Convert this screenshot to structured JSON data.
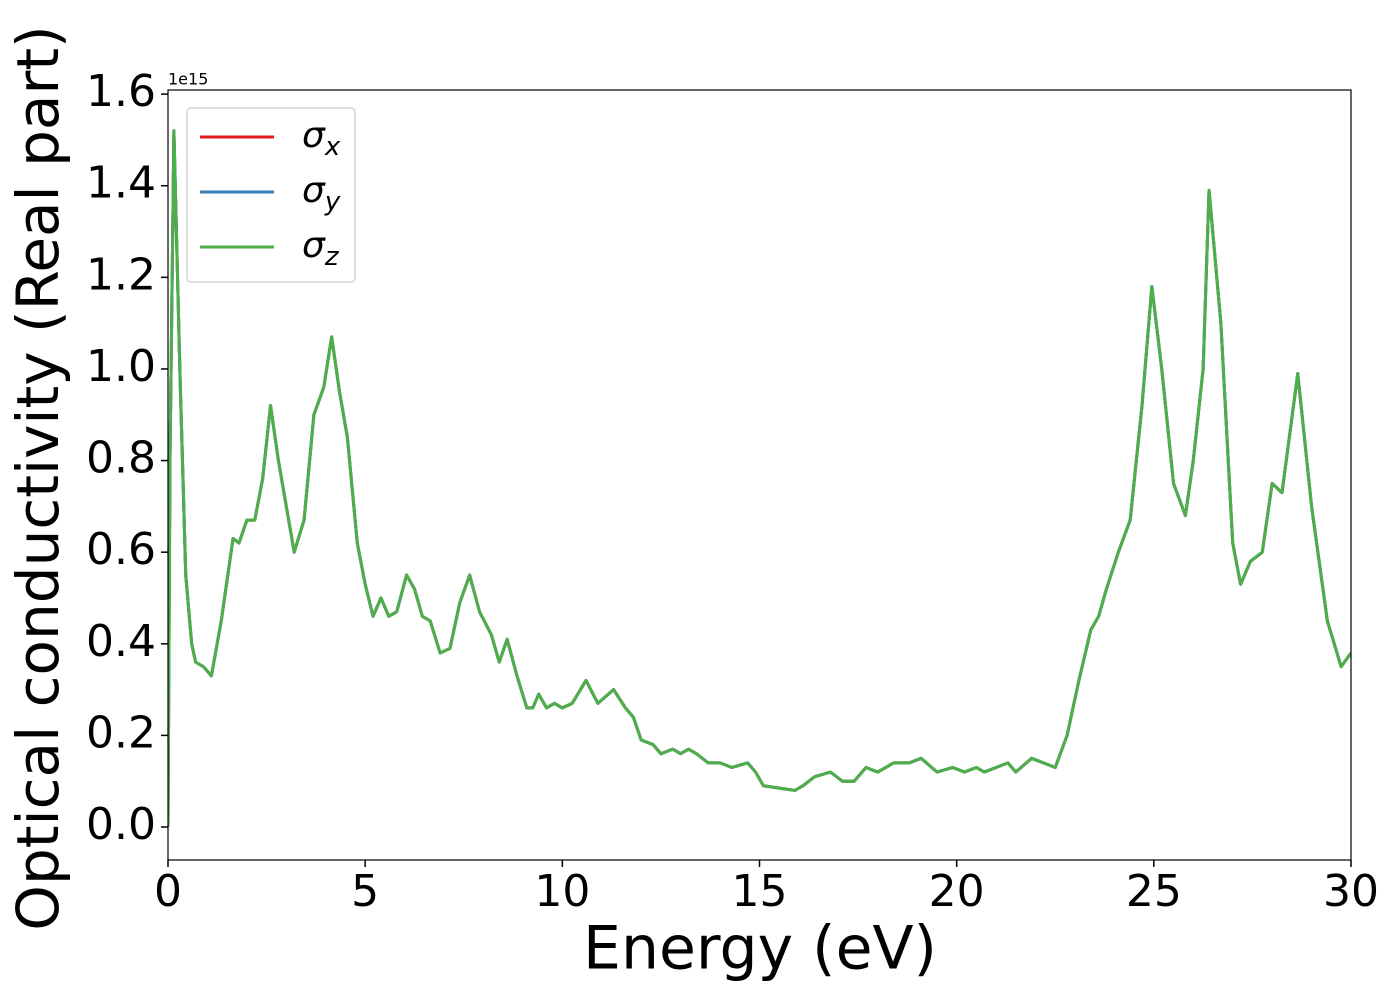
{
  "chart_data": {
    "type": "line",
    "xlabel": "Energy (eV)",
    "ylabel": "Optical conductivity (Real part)",
    "y_offset_label": "1e15",
    "xlim": [
      0,
      30
    ],
    "ylim": [
      -0.072,
      1.609
    ],
    "xticks": [
      0,
      5,
      10,
      15,
      20,
      25,
      30
    ],
    "yticks": [
      {
        "value": 0,
        "label": "0.0"
      },
      {
        "value": 0.2,
        "label": "0.2"
      },
      {
        "value": 0.4,
        "label": "0.4"
      },
      {
        "value": 0.6,
        "label": "0.6"
      },
      {
        "value": 0.8,
        "label": "0.8"
      },
      {
        "value": 1.0,
        "label": "1.0"
      },
      {
        "value": 1.2,
        "label": "1.2"
      },
      {
        "value": 1.4,
        "label": "1.4"
      },
      {
        "value": 1.6,
        "label": "1.6"
      }
    ],
    "legend": "upper left",
    "x": [
      0,
      0.05,
      0.15,
      0.3,
      0.45,
      0.6,
      0.7,
      0.9,
      1.1,
      1.35,
      1.65,
      1.8,
      2.0,
      2.2,
      2.4,
      2.6,
      2.8,
      3.0,
      3.2,
      3.45,
      3.7,
      3.95,
      4.15,
      4.35,
      4.55,
      4.8,
      5.0,
      5.2,
      5.4,
      5.6,
      5.8,
      6.05,
      6.25,
      6.45,
      6.65,
      6.9,
      7.15,
      7.4,
      7.65,
      7.9,
      8.2,
      8.4,
      8.6,
      8.85,
      9.1,
      9.25,
      9.4,
      9.6,
      9.8,
      10.0,
      10.25,
      10.6,
      10.9,
      11.3,
      11.6,
      11.8,
      12.0,
      12.3,
      12.5,
      12.8,
      13.0,
      13.2,
      13.4,
      13.7,
      14.0,
      14.3,
      14.7,
      14.9,
      15.1,
      15.5,
      15.9,
      16.1,
      16.4,
      16.8,
      17.1,
      17.4,
      17.7,
      18.0,
      18.4,
      18.8,
      19.1,
      19.5,
      19.9,
      20.2,
      20.5,
      20.7,
      21.0,
      21.3,
      21.5,
      21.9,
      22.2,
      22.5,
      22.8,
      23.1,
      23.4,
      23.6,
      23.8,
      24.1,
      24.4,
      24.7,
      24.95,
      25.2,
      25.5,
      25.8,
      26.0,
      26.25,
      26.4,
      26.7,
      27.0,
      27.2,
      27.45,
      27.75,
      28.0,
      28.25,
      28.65,
      29.0,
      29.4,
      29.75,
      30.0
    ],
    "series": [
      {
        "name": "σx",
        "color": "#e41a1c",
        "values": [
          0,
          0.8,
          1.52,
          1.0,
          0.55,
          0.4,
          0.36,
          0.35,
          0.33,
          0.45,
          0.63,
          0.62,
          0.67,
          0.67,
          0.76,
          0.92,
          0.8,
          0.7,
          0.6,
          0.67,
          0.9,
          0.96,
          1.07,
          0.95,
          0.85,
          0.62,
          0.53,
          0.46,
          0.5,
          0.46,
          0.47,
          0.55,
          0.52,
          0.46,
          0.45,
          0.38,
          0.39,
          0.49,
          0.55,
          0.47,
          0.42,
          0.36,
          0.41,
          0.33,
          0.26,
          0.26,
          0.29,
          0.26,
          0.27,
          0.26,
          0.27,
          0.32,
          0.27,
          0.3,
          0.26,
          0.24,
          0.19,
          0.18,
          0.16,
          0.17,
          0.16,
          0.17,
          0.16,
          0.14,
          0.14,
          0.13,
          0.14,
          0.12,
          0.09,
          0.085,
          0.08,
          0.09,
          0.11,
          0.12,
          0.1,
          0.1,
          0.13,
          0.12,
          0.14,
          0.14,
          0.15,
          0.12,
          0.13,
          0.12,
          0.13,
          0.12,
          0.13,
          0.14,
          0.12,
          0.15,
          0.14,
          0.13,
          0.2,
          0.32,
          0.43,
          0.46,
          0.52,
          0.6,
          0.67,
          0.92,
          1.18,
          1.0,
          0.75,
          0.68,
          0.8,
          1.0,
          1.39,
          1.1,
          0.62,
          0.53,
          0.58,
          0.6,
          0.75,
          0.73,
          0.99,
          0.7,
          0.45,
          0.35,
          0.38
        ]
      },
      {
        "name": "σy",
        "color": "#377eb8",
        "values": [
          0,
          0.8,
          1.52,
          1.0,
          0.55,
          0.4,
          0.36,
          0.35,
          0.33,
          0.45,
          0.63,
          0.62,
          0.67,
          0.67,
          0.76,
          0.92,
          0.8,
          0.7,
          0.6,
          0.67,
          0.9,
          0.96,
          1.07,
          0.95,
          0.85,
          0.62,
          0.53,
          0.46,
          0.5,
          0.46,
          0.47,
          0.55,
          0.52,
          0.46,
          0.45,
          0.38,
          0.39,
          0.49,
          0.55,
          0.47,
          0.42,
          0.36,
          0.41,
          0.33,
          0.26,
          0.26,
          0.29,
          0.26,
          0.27,
          0.26,
          0.27,
          0.32,
          0.27,
          0.3,
          0.26,
          0.24,
          0.19,
          0.18,
          0.16,
          0.17,
          0.16,
          0.17,
          0.16,
          0.14,
          0.14,
          0.13,
          0.14,
          0.12,
          0.09,
          0.085,
          0.08,
          0.09,
          0.11,
          0.12,
          0.1,
          0.1,
          0.13,
          0.12,
          0.14,
          0.14,
          0.15,
          0.12,
          0.13,
          0.12,
          0.13,
          0.12,
          0.13,
          0.14,
          0.12,
          0.15,
          0.14,
          0.13,
          0.2,
          0.32,
          0.43,
          0.46,
          0.52,
          0.6,
          0.67,
          0.92,
          1.18,
          1.0,
          0.75,
          0.68,
          0.8,
          1.0,
          1.39,
          1.1,
          0.62,
          0.53,
          0.58,
          0.6,
          0.75,
          0.73,
          0.99,
          0.7,
          0.45,
          0.35,
          0.38
        ]
      },
      {
        "name": "σz",
        "color": "#4daf4a",
        "values": [
          0,
          0.8,
          1.52,
          1.0,
          0.55,
          0.4,
          0.36,
          0.35,
          0.33,
          0.45,
          0.63,
          0.62,
          0.67,
          0.67,
          0.76,
          0.92,
          0.8,
          0.7,
          0.6,
          0.67,
          0.9,
          0.96,
          1.07,
          0.95,
          0.85,
          0.62,
          0.53,
          0.46,
          0.5,
          0.46,
          0.47,
          0.55,
          0.52,
          0.46,
          0.45,
          0.38,
          0.39,
          0.49,
          0.55,
          0.47,
          0.42,
          0.36,
          0.41,
          0.33,
          0.26,
          0.26,
          0.29,
          0.26,
          0.27,
          0.26,
          0.27,
          0.32,
          0.27,
          0.3,
          0.26,
          0.24,
          0.19,
          0.18,
          0.16,
          0.17,
          0.16,
          0.17,
          0.16,
          0.14,
          0.14,
          0.13,
          0.14,
          0.12,
          0.09,
          0.085,
          0.08,
          0.09,
          0.11,
          0.12,
          0.1,
          0.1,
          0.13,
          0.12,
          0.14,
          0.14,
          0.15,
          0.12,
          0.13,
          0.12,
          0.13,
          0.12,
          0.13,
          0.14,
          0.12,
          0.15,
          0.14,
          0.13,
          0.2,
          0.32,
          0.43,
          0.46,
          0.52,
          0.6,
          0.67,
          0.92,
          1.18,
          1.0,
          0.75,
          0.68,
          0.8,
          1.0,
          1.39,
          1.1,
          0.62,
          0.53,
          0.58,
          0.6,
          0.75,
          0.73,
          0.99,
          0.7,
          0.45,
          0.35,
          0.38
        ]
      }
    ]
  }
}
